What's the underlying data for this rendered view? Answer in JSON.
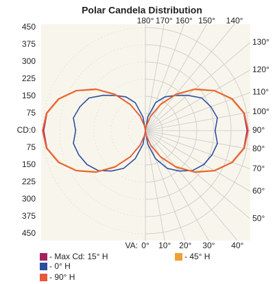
{
  "chart_data": {
    "type": "polar",
    "title": "Polar Candela Distribution",
    "radial_axis_label": "CD:",
    "angle_axis_label": "VA:",
    "rlim": [
      0,
      450
    ],
    "rticks": [
      0,
      75,
      150,
      225,
      300,
      375,
      450
    ],
    "angles": [
      0,
      10,
      20,
      30,
      40,
      50,
      60,
      70,
      80,
      90,
      100,
      110,
      120,
      130,
      140,
      150,
      160,
      170,
      180
    ],
    "aticks": [
      {
        "value": 0,
        "label": "0°"
      },
      {
        "value": 10,
        "label": "10°"
      },
      {
        "value": 20,
        "label": "20°"
      },
      {
        "value": 30,
        "label": "30°"
      },
      {
        "value": 40,
        "label": "40°"
      },
      {
        "value": 50,
        "label": "50°"
      },
      {
        "value": 60,
        "label": "60°"
      },
      {
        "value": 70,
        "label": "70°"
      },
      {
        "value": 80,
        "label": "80°"
      },
      {
        "value": 90,
        "label": "90°"
      },
      {
        "value": 100,
        "label": "100°"
      },
      {
        "value": 110,
        "label": "110°"
      },
      {
        "value": 120,
        "label": "120°"
      },
      {
        "value": 130,
        "label": "130°"
      },
      {
        "value": 140,
        "label": "140°"
      },
      {
        "value": 150,
        "label": "150°"
      },
      {
        "value": 160,
        "label": "160°"
      },
      {
        "value": 170,
        "label": "170°"
      },
      {
        "value": 180,
        "label": "180°"
      }
    ],
    "grid": true,
    "series": [
      {
        "name": "- Max Cd: 15° H",
        "color": "#a3225f",
        "values": [
          0,
          20,
          66,
          130,
          205,
          280,
          348,
          402,
          437,
          445,
          437,
          402,
          348,
          280,
          205,
          130,
          66,
          20,
          0
        ]
      },
      {
        "name": "- 0° H",
        "color": "#2a4ea0",
        "values": [
          0,
          60,
          130,
          190,
          230,
          270,
          295,
          310,
          320,
          305,
          320,
          305,
          285,
          240,
          200,
          170,
          130,
          60,
          0
        ]
      },
      {
        "name": "- 45° H",
        "color": "#f0a030",
        "values": [
          0,
          19,
          65,
          129,
          203,
          278,
          347,
          402,
          438,
          450,
          438,
          402,
          347,
          278,
          203,
          129,
          65,
          19,
          0
        ]
      },
      {
        "name": "- 90° H",
        "color": "#e8583a",
        "values": [
          0,
          21,
          68,
          133,
          208,
          283,
          350,
          405,
          440,
          450,
          440,
          405,
          350,
          283,
          208,
          133,
          68,
          21,
          0
        ]
      }
    ]
  }
}
